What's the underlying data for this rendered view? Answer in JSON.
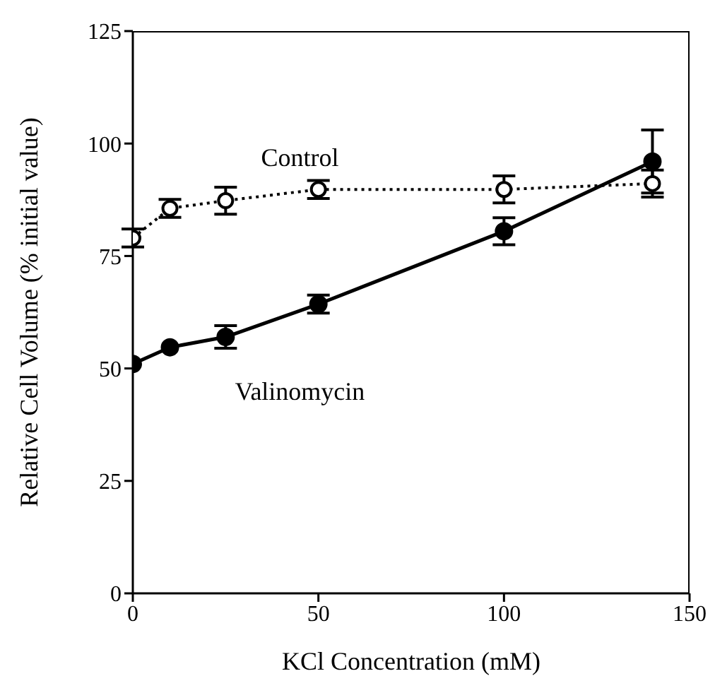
{
  "chart_data": {
    "type": "line",
    "xlabel": "KCl Concentration (mM)",
    "ylabel": "Relative Cell Volume (% initial value)",
    "x": [
      0,
      10,
      25,
      50,
      100,
      140
    ],
    "xlim": [
      0,
      150
    ],
    "xticks": [
      0,
      50,
      100,
      150
    ],
    "ylim": [
      0,
      125
    ],
    "yticks": [
      0,
      25,
      50,
      75,
      100,
      125
    ],
    "marker": "circle",
    "series": [
      {
        "name": "Control",
        "color": "#000000",
        "line_style": "dotted",
        "values": [
          79,
          85.6,
          87.3,
          89.8,
          89.8,
          91.1
        ],
        "errors": [
          2,
          2,
          3,
          2,
          3,
          3
        ]
      },
      {
        "name": "Valinomycin",
        "color": "#000000",
        "line_style": "solid",
        "values": [
          51,
          54.7,
          57,
          64.3,
          80.5,
          96
        ],
        "errors": [
          null,
          null,
          2.5,
          2,
          3,
          7
        ]
      }
    ]
  }
}
